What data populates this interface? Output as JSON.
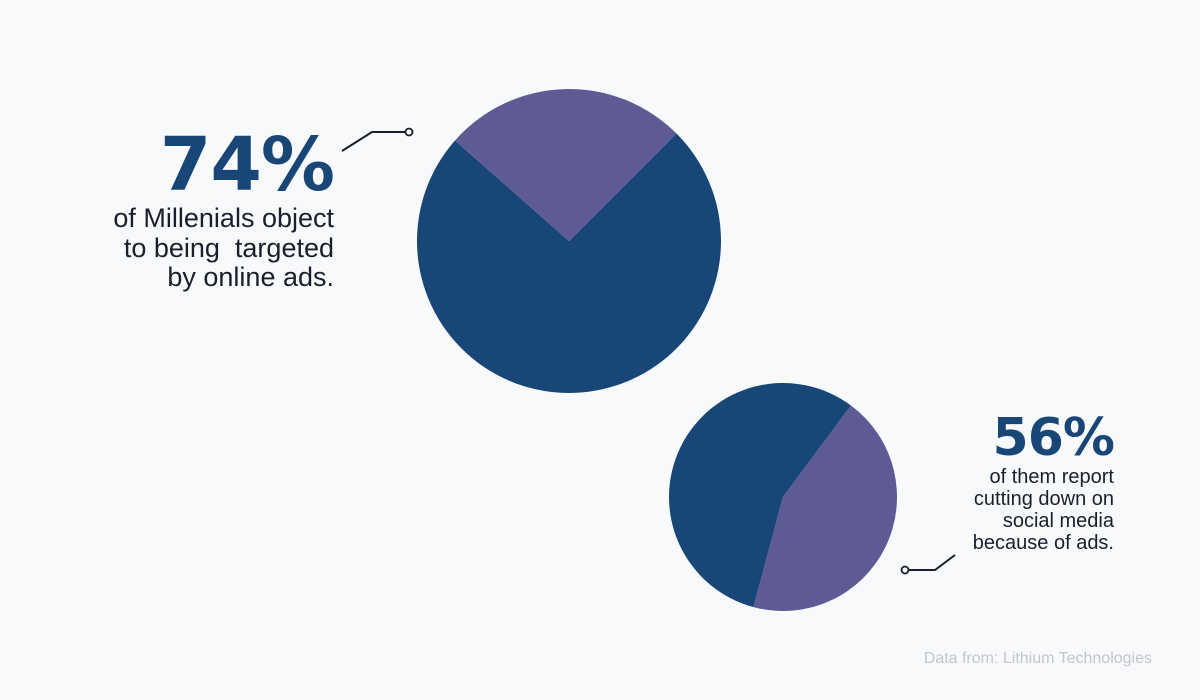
{
  "colors": {
    "primary": "#184677",
    "secondary": "#5e5b94",
    "text": "#1a1f2c",
    "muted": "#c3c6cc",
    "background": "#f8f9fb"
  },
  "chart_data": [
    {
      "type": "pie",
      "slices": [
        {
          "value": 74,
          "color": "#184677"
        },
        {
          "value": 26,
          "color": "#5e5b94"
        }
      ],
      "label": "74%",
      "caption_lines": [
        "of Millenials object",
        "to being  targeted",
        "by online ads."
      ]
    },
    {
      "type": "pie",
      "slices": [
        {
          "value": 56,
          "color": "#184677"
        },
        {
          "value": 44,
          "color": "#5e5b94"
        }
      ],
      "label": "56%",
      "caption_lines": [
        "of them report",
        "cutting down on",
        "social media",
        "because of ads."
      ]
    }
  ],
  "source": "Data from: Lithium Technologies"
}
